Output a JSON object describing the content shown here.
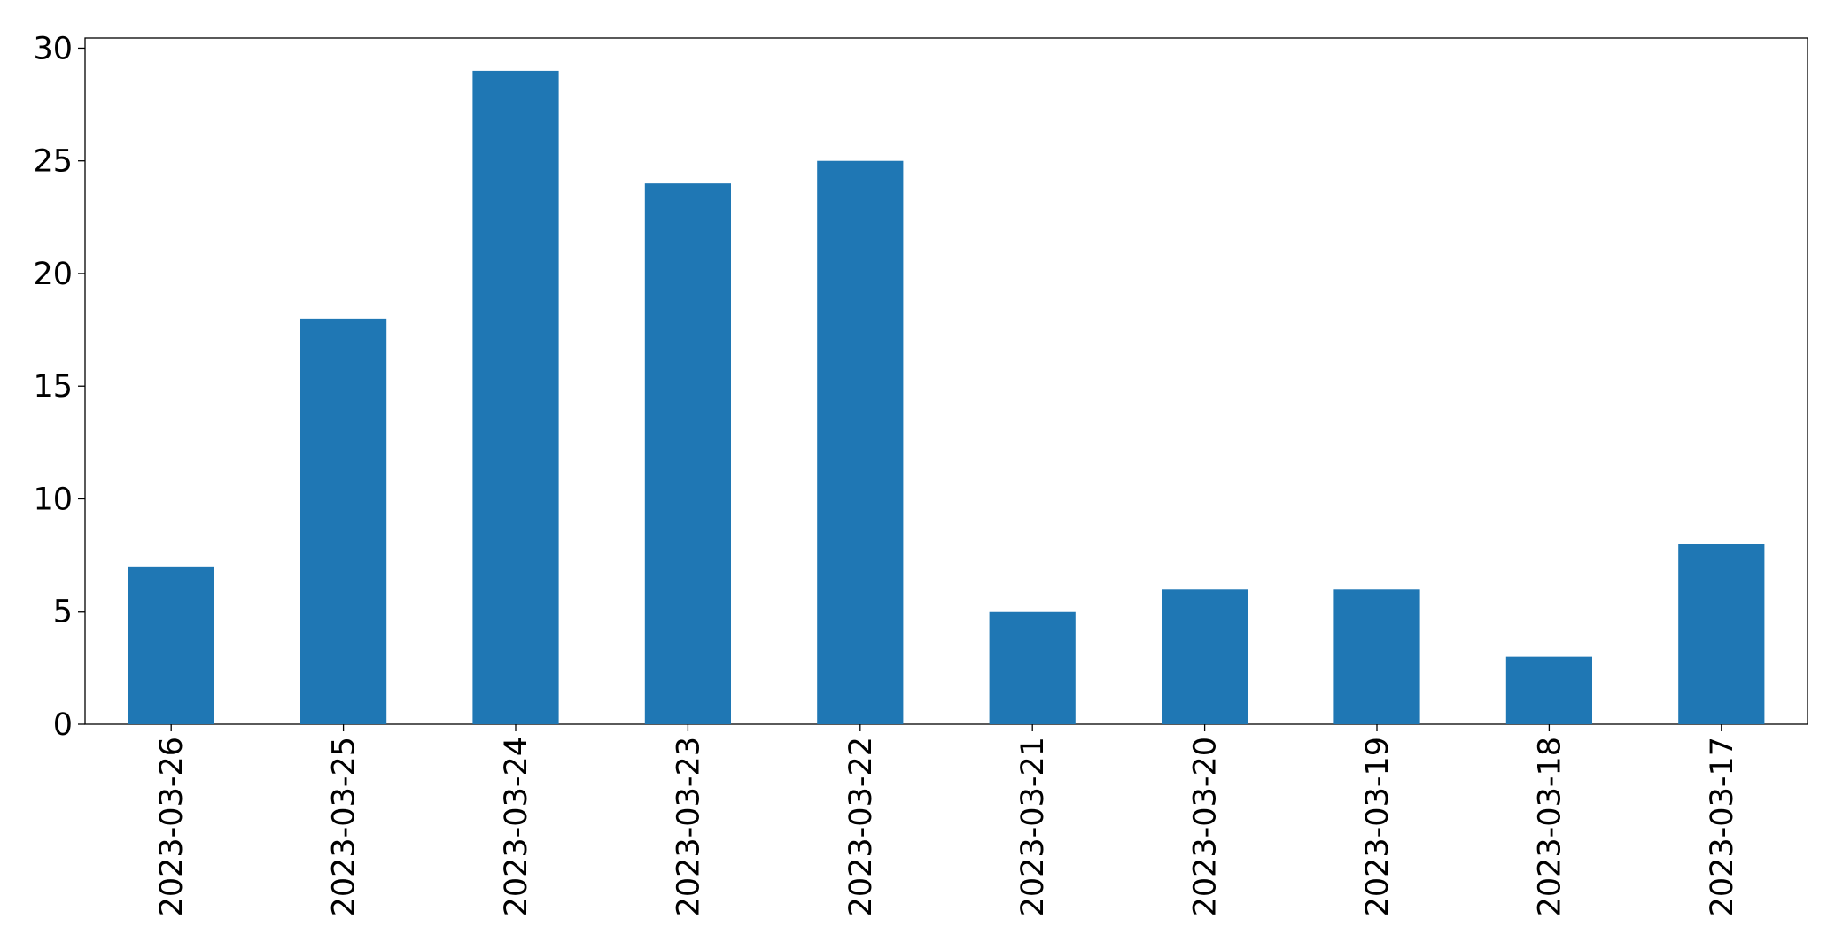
{
  "chart_data": {
    "type": "bar",
    "categories": [
      "2023-03-26",
      "2023-03-25",
      "2023-03-24",
      "2023-03-23",
      "2023-03-22",
      "2023-03-21",
      "2023-03-20",
      "2023-03-19",
      "2023-03-18",
      "2023-03-17"
    ],
    "values": [
      7,
      18,
      29,
      24,
      25,
      5,
      6,
      6,
      3,
      8
    ],
    "color": "#1f77b4",
    "ylim": [
      0,
      30.45
    ],
    "yticks": [
      0,
      5,
      10,
      15,
      20,
      25,
      30
    ],
    "grid": false
  }
}
